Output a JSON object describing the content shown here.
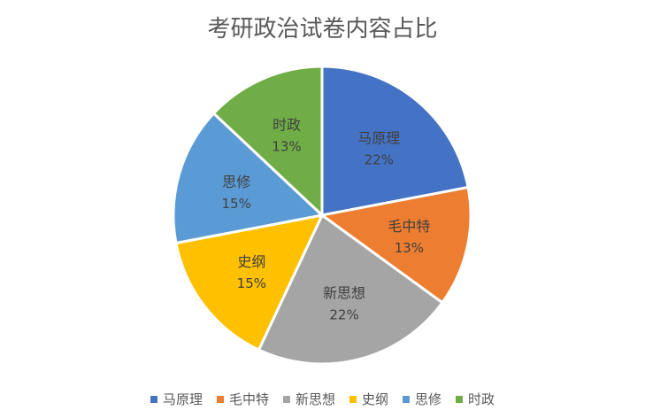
{
  "chart_data": {
    "type": "pie",
    "title": "考研政治试卷内容占比",
    "categories": [
      "马原理",
      "毛中特",
      "新思想",
      "史纲",
      "思修",
      "时政"
    ],
    "values": [
      22,
      13,
      22,
      15,
      15,
      13
    ],
    "data_labels": [
      "22%",
      "13%",
      "22%",
      "15%",
      "15%",
      "13%"
    ],
    "colors": [
      "#4472C4",
      "#ED7D31",
      "#A5A5A5",
      "#FFC000",
      "#5B9BD5",
      "#70AD47"
    ],
    "legend_position": "bottom",
    "start": "12 o'clock, clockwise"
  }
}
